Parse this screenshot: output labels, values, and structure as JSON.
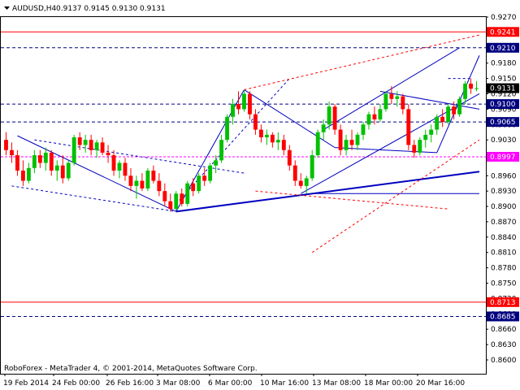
{
  "header": {
    "symbol_label": "AUDUSD,H4",
    "ohlc": "0.9137 0.9145 0.9130 0.9131"
  },
  "footer": {
    "copyright": "RoboForex - MetaTrader 4, © 2001-2014, MetaQuotes Software Corp."
  },
  "colors": {
    "bull": "#00c000",
    "bear": "#ff0000",
    "trend_blue": "#0000c0",
    "red_line": "#ff0000",
    "dashed_dark": "#000080",
    "tag_red": "#ff0000",
    "tag_dark": "#000080"
  },
  "chart_data": {
    "type": "candlestick",
    "symbol": "AUDUSD",
    "timeframe": "H4",
    "ylim": [
      0.8573,
      0.927
    ],
    "y_ticks": [
      0.927,
      0.924,
      0.921,
      0.918,
      0.915,
      0.912,
      0.909,
      0.906,
      0.903,
      0.9,
      0.896,
      0.893,
      0.89,
      0.887,
      0.884,
      0.881,
      0.878,
      0.875,
      0.872,
      0.869,
      0.866,
      0.863,
      0.86
    ],
    "x_tick_labels": [
      "19 Feb 2014",
      "24 Feb 00:00",
      "26 Feb 16:00",
      "3 Mar 08:00",
      "6 Mar 00:00",
      "10 Mar 16:00",
      "13 Mar 08:00",
      "18 Mar 00:00",
      "20 Mar 16:00"
    ],
    "price_tags": [
      {
        "value": 0.9241,
        "label": "0.9241",
        "style": "red"
      },
      {
        "value": 0.921,
        "label": "0.9210",
        "style": "dark"
      },
      {
        "value": 0.9131,
        "label": "0.9131",
        "style": "current"
      },
      {
        "value": 0.91,
        "label": "0.9100",
        "style": "dark"
      },
      {
        "value": 0.9065,
        "label": "0.9065",
        "style": "dark"
      },
      {
        "value": 0.8997,
        "label": "0.8997",
        "style": "magenta"
      },
      {
        "value": 0.8713,
        "label": "0.8713",
        "style": "red"
      },
      {
        "value": 0.8685,
        "label": "0.8685",
        "style": "dark"
      }
    ],
    "candles": [
      [
        0.903,
        0.9045,
        0.9,
        0.901
      ],
      [
        0.901,
        0.9025,
        0.8985,
        0.9
      ],
      [
        0.9,
        0.901,
        0.896,
        0.897
      ],
      [
        0.897,
        0.899,
        0.894,
        0.895
      ],
      [
        0.895,
        0.8985,
        0.8945,
        0.8975
      ],
      [
        0.8975,
        0.901,
        0.8965,
        0.9
      ],
      [
        0.9,
        0.901,
        0.8975,
        0.8985
      ],
      [
        0.8985,
        0.9015,
        0.897,
        0.9005
      ],
      [
        0.9005,
        0.901,
        0.896,
        0.897
      ],
      [
        0.897,
        0.899,
        0.895,
        0.898
      ],
      [
        0.898,
        0.9,
        0.8945,
        0.8955
      ],
      [
        0.8955,
        0.899,
        0.895,
        0.8985
      ],
      [
        0.8985,
        0.904,
        0.898,
        0.9035
      ],
      [
        0.9035,
        0.9045,
        0.901,
        0.902
      ],
      [
        0.902,
        0.904,
        0.9005,
        0.903
      ],
      [
        0.903,
        0.904,
        0.9,
        0.901
      ],
      [
        0.901,
        0.903,
        0.8995,
        0.9025
      ],
      [
        0.9025,
        0.9035,
        0.9,
        0.9005
      ],
      [
        0.9005,
        0.902,
        0.8985,
        0.9
      ],
      [
        0.9,
        0.901,
        0.896,
        0.897
      ],
      [
        0.897,
        0.899,
        0.8955,
        0.8985
      ],
      [
        0.8985,
        0.8995,
        0.895,
        0.896
      ],
      [
        0.896,
        0.8975,
        0.893,
        0.894
      ],
      [
        0.894,
        0.896,
        0.8915,
        0.895
      ],
      [
        0.895,
        0.8965,
        0.893,
        0.8935
      ],
      [
        0.8935,
        0.8975,
        0.893,
        0.897
      ],
      [
        0.897,
        0.898,
        0.8945,
        0.895
      ],
      [
        0.895,
        0.8965,
        0.892,
        0.893
      ],
      [
        0.893,
        0.8945,
        0.89,
        0.891
      ],
      [
        0.891,
        0.8925,
        0.889,
        0.8895
      ],
      [
        0.8895,
        0.893,
        0.8892,
        0.8925
      ],
      [
        0.8925,
        0.8935,
        0.89,
        0.8905
      ],
      [
        0.8905,
        0.895,
        0.89,
        0.8945
      ],
      [
        0.8945,
        0.8955,
        0.892,
        0.893
      ],
      [
        0.893,
        0.8965,
        0.8925,
        0.896
      ],
      [
        0.896,
        0.8975,
        0.894,
        0.895
      ],
      [
        0.895,
        0.8985,
        0.8945,
        0.898
      ],
      [
        0.898,
        0.9,
        0.8965,
        0.899
      ],
      [
        0.899,
        0.904,
        0.8985,
        0.903
      ],
      [
        0.903,
        0.908,
        0.9025,
        0.9075
      ],
      [
        0.9075,
        0.911,
        0.906,
        0.91
      ],
      [
        0.91,
        0.9125,
        0.908,
        0.909
      ],
      [
        0.909,
        0.9128,
        0.9085,
        0.912
      ],
      [
        0.912,
        0.9125,
        0.907,
        0.908
      ],
      [
        0.908,
        0.909,
        0.904,
        0.905
      ],
      [
        0.905,
        0.906,
        0.9025,
        0.9035
      ],
      [
        0.9035,
        0.905,
        0.902,
        0.904
      ],
      [
        0.904,
        0.9045,
        0.9015,
        0.9025
      ],
      [
        0.9025,
        0.9045,
        0.901,
        0.903
      ],
      [
        0.903,
        0.904,
        0.9,
        0.901
      ],
      [
        0.901,
        0.902,
        0.897,
        0.898
      ],
      [
        0.898,
        0.899,
        0.894,
        0.895
      ],
      [
        0.895,
        0.8965,
        0.8935,
        0.894
      ],
      [
        0.894,
        0.896,
        0.8925,
        0.8955
      ],
      [
        0.8955,
        0.901,
        0.895,
        0.9
      ],
      [
        0.9,
        0.905,
        0.8995,
        0.9045
      ],
      [
        0.9045,
        0.907,
        0.903,
        0.906
      ],
      [
        0.906,
        0.9105,
        0.905,
        0.9095
      ],
      [
        0.9095,
        0.91,
        0.904,
        0.905
      ],
      [
        0.905,
        0.906,
        0.9,
        0.901
      ],
      [
        0.901,
        0.904,
        0.9,
        0.903
      ],
      [
        0.903,
        0.905,
        0.901,
        0.902
      ],
      [
        0.902,
        0.9045,
        0.901,
        0.904
      ],
      [
        0.904,
        0.9065,
        0.903,
        0.906
      ],
      [
        0.906,
        0.9085,
        0.905,
        0.908
      ],
      [
        0.908,
        0.9095,
        0.906,
        0.907
      ],
      [
        0.907,
        0.91,
        0.9065,
        0.909
      ],
      [
        0.909,
        0.9125,
        0.9085,
        0.912
      ],
      [
        0.912,
        0.9135,
        0.91,
        0.911
      ],
      [
        0.911,
        0.9125,
        0.9095,
        0.9115
      ],
      [
        0.9115,
        0.912,
        0.908,
        0.909
      ],
      [
        0.909,
        0.91,
        0.901,
        0.902
      ],
      [
        0.902,
        0.903,
        0.8995,
        0.9005
      ],
      [
        0.9005,
        0.9035,
        0.9,
        0.903
      ],
      [
        0.903,
        0.905,
        0.9015,
        0.904
      ],
      [
        0.904,
        0.906,
        0.9025,
        0.905
      ],
      [
        0.905,
        0.908,
        0.904,
        0.9075
      ],
      [
        0.9075,
        0.909,
        0.9055,
        0.9065
      ],
      [
        0.9065,
        0.91,
        0.906,
        0.9095
      ],
      [
        0.9095,
        0.9105,
        0.907,
        0.908
      ],
      [
        0.908,
        0.9115,
        0.9075,
        0.911
      ],
      [
        0.911,
        0.9145,
        0.91,
        0.914
      ],
      [
        0.914,
        0.915,
        0.912,
        0.913
      ],
      [
        0.913,
        0.9145,
        0.9125,
        0.9131
      ]
    ]
  }
}
